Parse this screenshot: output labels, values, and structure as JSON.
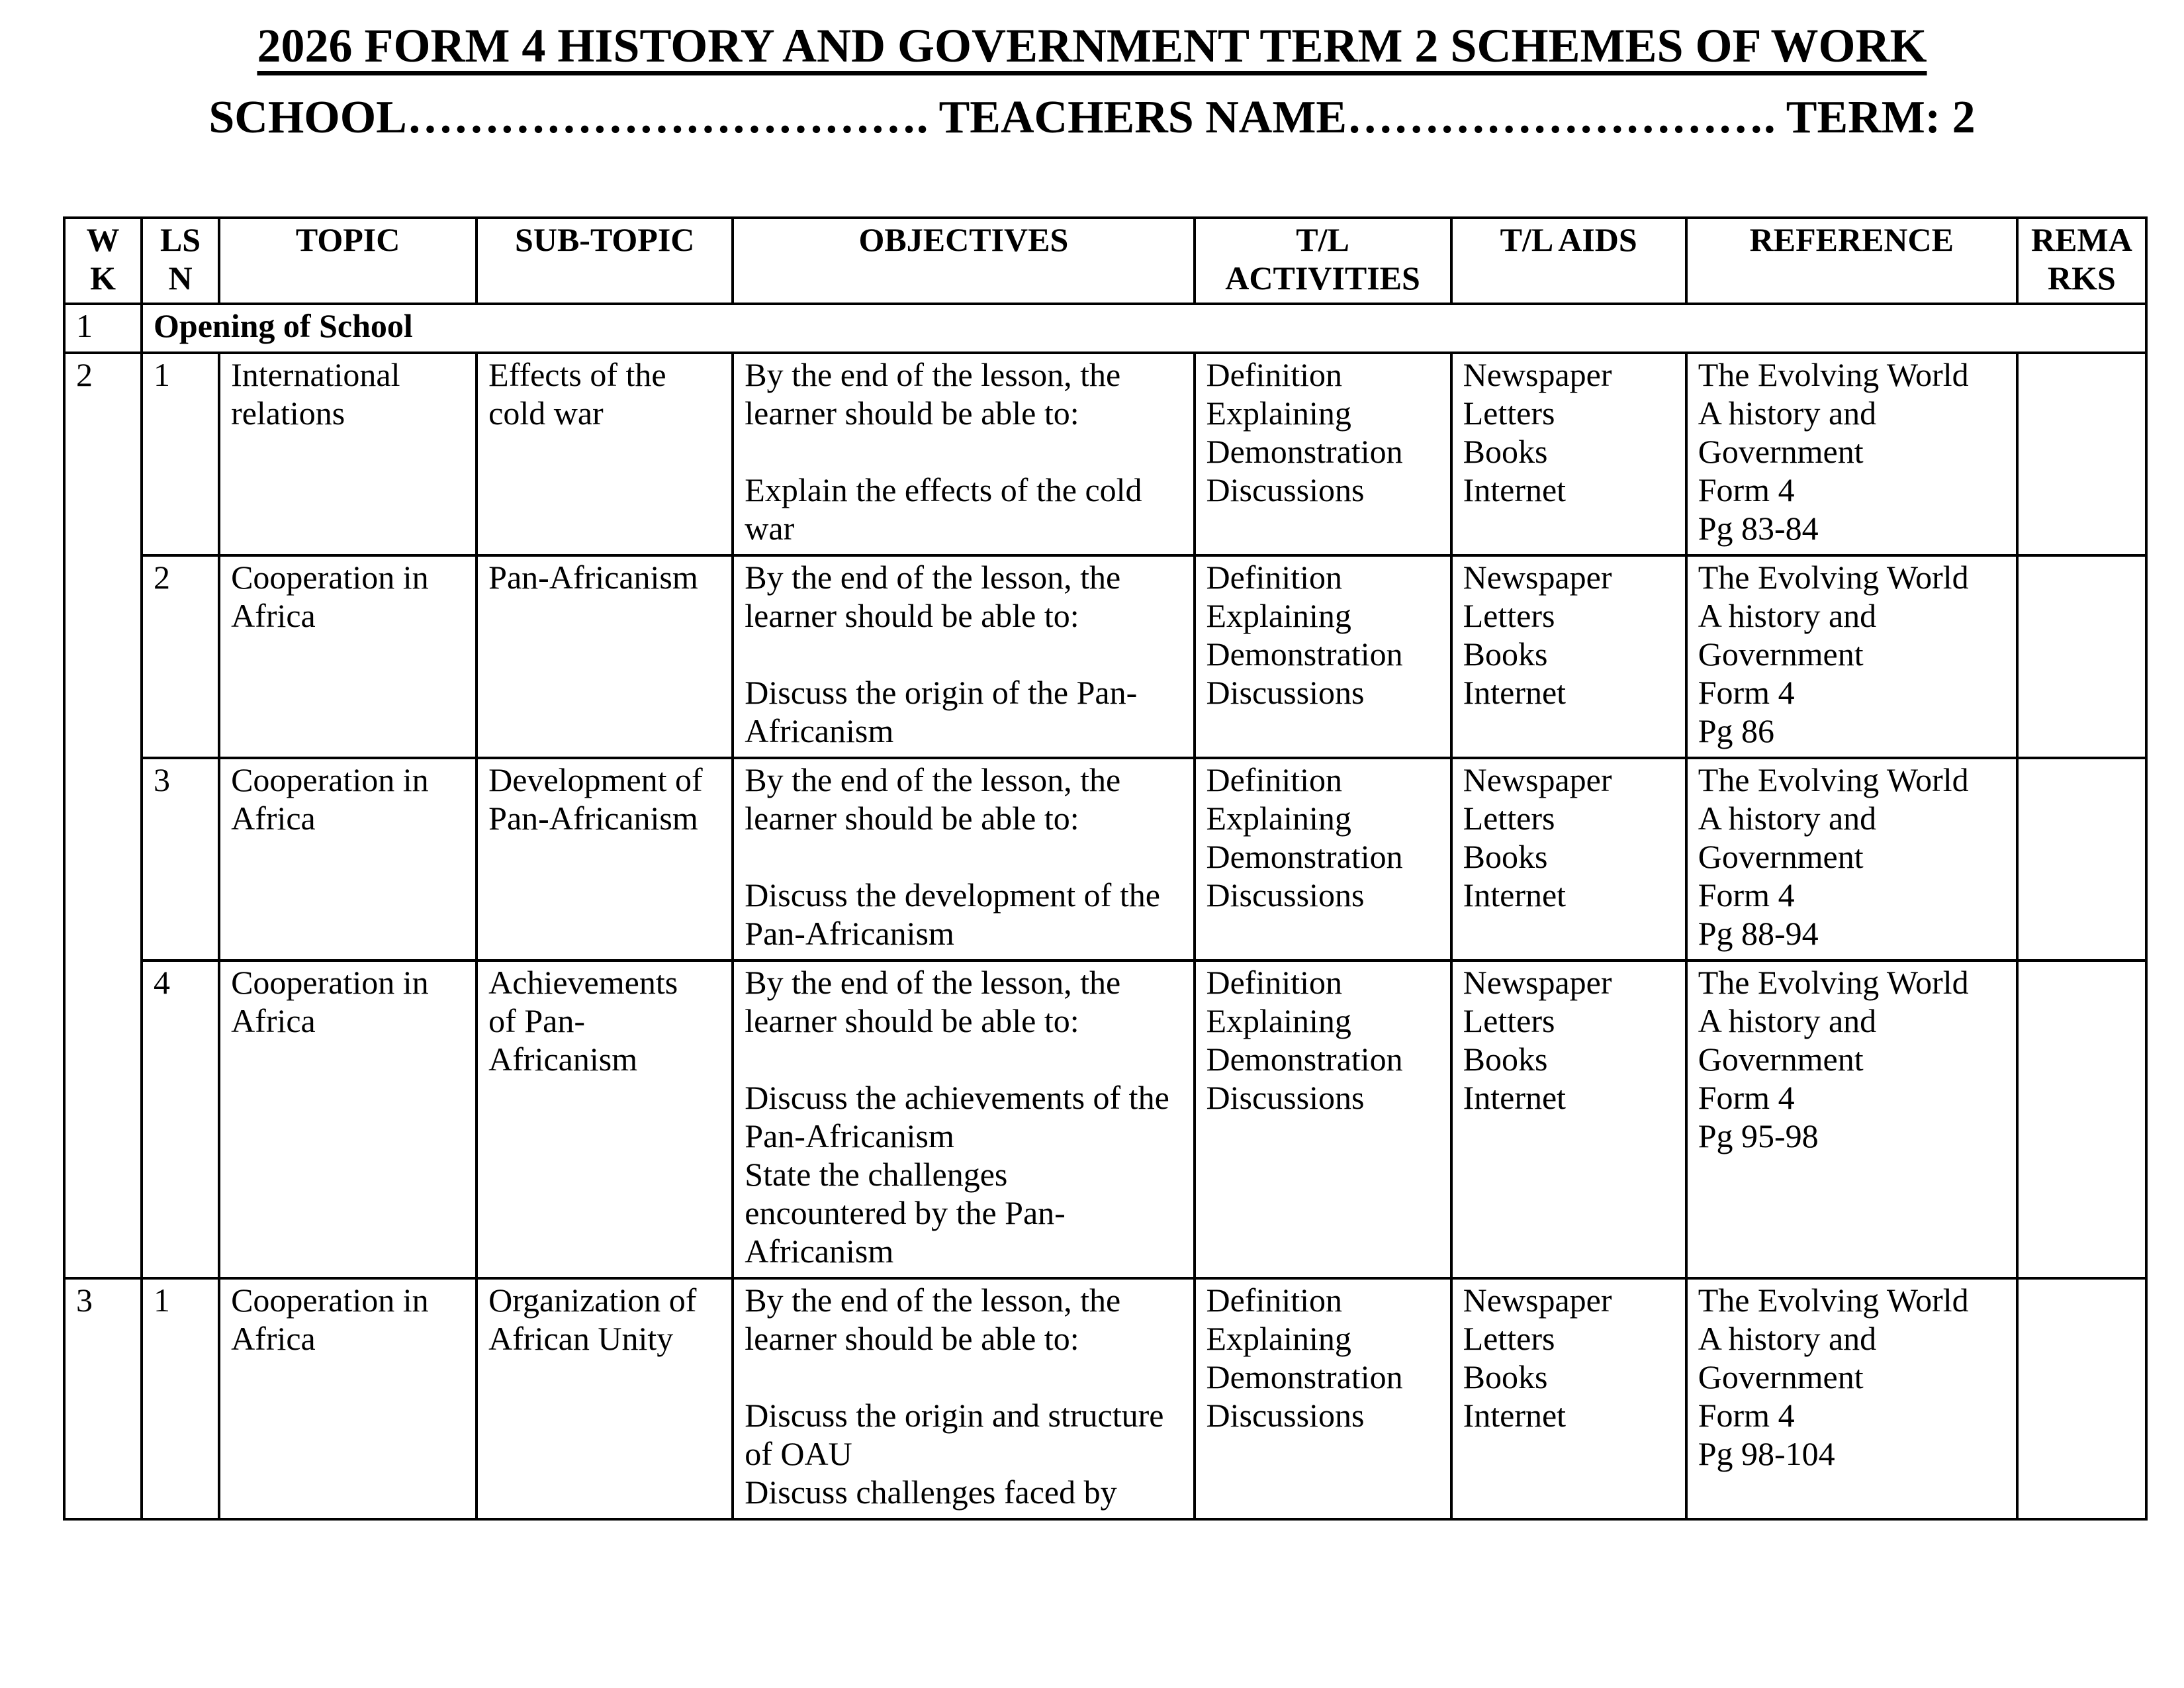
{
  "page": {
    "title": "2026 FORM 4 HISTORY AND GOVERNMENT TERM 2 SCHEMES OF WORK",
    "subtitle": "SCHOOL……………………………. TEACHERS NAME………………………. TERM: 2"
  },
  "table": {
    "headers": [
      [
        "W",
        "K"
      ],
      [
        "LS",
        "N"
      ],
      "TOPIC",
      "SUB-TOPIC",
      "OBJECTIVES",
      [
        "T/L",
        "ACTIVITIES"
      ],
      "T/L AIDS",
      "REFERENCE",
      [
        "REMA",
        "RKS"
      ]
    ],
    "week_opening": {
      "wk": "1",
      "label": "Opening of School"
    },
    "rows": [
      {
        "wk": "2",
        "lsn": "1",
        "topic": "International relations",
        "subtopic": "Effects of the cold war",
        "objectives": [
          "By the end of the lesson, the learner should be able to:",
          "",
          "Explain the effects of the cold war"
        ],
        "activities": [
          "Definition",
          "Explaining",
          "Demonstration",
          "Discussions"
        ],
        "aids": [
          "Newspaper",
          "Letters",
          "Books",
          "Internet"
        ],
        "reference": [
          "The Evolving World",
          "A history and",
          "Government",
          "Form 4",
          "Pg 83-84"
        ],
        "remarks": ""
      },
      {
        "lsn": "2",
        "topic": "Cooperation in Africa",
        "subtopic": "Pan-Africanism",
        "objectives": [
          "By the end of the lesson, the learner should be able to:",
          "",
          "Discuss the origin of the Pan-Africanism"
        ],
        "activities": [
          "Definition",
          "Explaining",
          "Demonstration",
          "Discussions"
        ],
        "aids": [
          "Newspaper",
          "Letters",
          "Books",
          "Internet"
        ],
        "reference": [
          "The Evolving World",
          "A history and",
          "Government",
          "Form 4",
          "Pg 86"
        ],
        "remarks": ""
      },
      {
        "lsn": "3",
        "topic": "Cooperation in Africa",
        "subtopic": "Development of Pan-Africanism",
        "objectives": [
          "By the end of the lesson, the learner should be able to:",
          "",
          "Discuss the development of the Pan-Africanism"
        ],
        "activities": [
          "Definition",
          "Explaining",
          "Demonstration",
          "Discussions"
        ],
        "aids": [
          "Newspaper",
          "Letters",
          "Books",
          "Internet"
        ],
        "reference": [
          "The Evolving World",
          "A history and",
          "Government",
          "Form 4",
          "Pg 88-94"
        ],
        "remarks": ""
      },
      {
        "lsn": "4",
        "topic": "Cooperation in Africa",
        "subtopic": "Achievements of Pan-Africanism",
        "objectives": [
          "By the end of the lesson, the learner should be able to:",
          "",
          "Discuss the achievements of the Pan-Africanism",
          "State the challenges encountered by the Pan-Africanism"
        ],
        "activities": [
          "Definition",
          "Explaining",
          "Demonstration",
          "Discussions"
        ],
        "aids": [
          "Newspaper",
          "Letters",
          "Books",
          "Internet"
        ],
        "reference": [
          "The Evolving World",
          "A history and",
          "Government",
          "Form 4",
          "Pg 95-98"
        ],
        "remarks": ""
      },
      {
        "wk": "3",
        "lsn": "1",
        "topic": "Cooperation in Africa",
        "subtopic": "Organization of African Unity",
        "objectives": [
          "By the end of the lesson, the learner should be able to:",
          "",
          "Discuss the origin and structure of OAU",
          "Discuss challenges faced by"
        ],
        "activities": [
          "Definition",
          "Explaining",
          "Demonstration",
          "Discussions"
        ],
        "aids": [
          "Newspaper",
          "Letters",
          "Books",
          "Internet"
        ],
        "reference": [
          "The Evolving World",
          "A history and",
          "Government",
          "Form 4",
          "Pg 98-104"
        ],
        "remarks": ""
      }
    ]
  }
}
